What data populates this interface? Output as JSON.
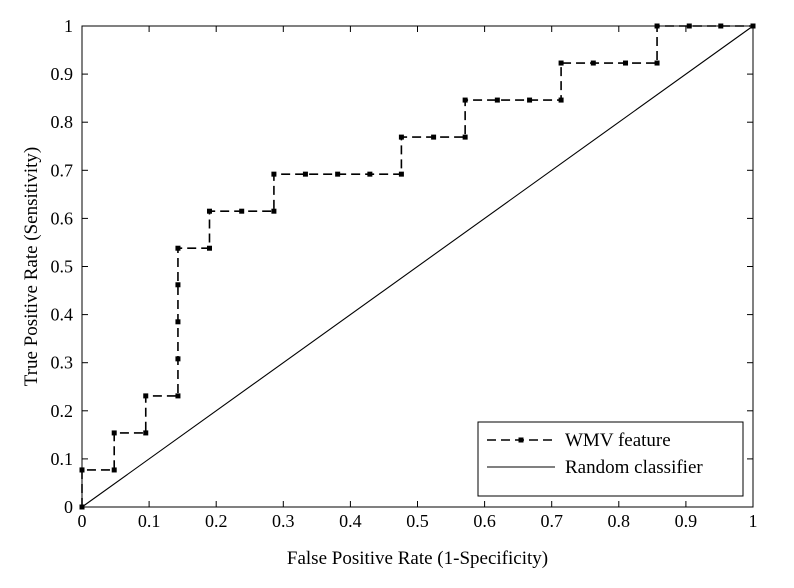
{
  "chart_data": {
    "type": "line",
    "title": "",
    "xlabel": "False Positive Rate (1-Specificity)",
    "ylabel": "True Positive Rate (Sensitivity)",
    "xlim": [
      0,
      1
    ],
    "ylim": [
      0,
      1
    ],
    "xticks": [
      "0",
      "0.1",
      "0.2",
      "0.3",
      "0.4",
      "0.5",
      "0.6",
      "0.7",
      "0.8",
      "0.9",
      "1"
    ],
    "yticks": [
      "0",
      "0.1",
      "0.2",
      "0.3",
      "0.4",
      "0.5",
      "0.6",
      "0.7",
      "0.8",
      "0.9",
      "1"
    ],
    "grid": false,
    "legend_position": "bottom-right",
    "series": [
      {
        "name": "WMV feature",
        "style": "dashed-with-square-markers",
        "color": "#000000",
        "x": [
          0,
          0,
          0,
          0.048,
          0.048,
          0.095,
          0.095,
          0.143,
          0.143,
          0.143,
          0.143,
          0.143,
          0.19,
          0.19,
          0.238,
          0.286,
          0.286,
          0.333,
          0.381,
          0.429,
          0.476,
          0.476,
          0.524,
          0.571,
          0.571,
          0.619,
          0.667,
          0.714,
          0.714,
          0.762,
          0.81,
          0.857,
          0.857,
          0.905,
          0.952,
          1.0
        ],
        "y": [
          0,
          0.077,
          0.077,
          0.077,
          0.154,
          0.154,
          0.231,
          0.231,
          0.308,
          0.385,
          0.462,
          0.538,
          0.538,
          0.615,
          0.615,
          0.615,
          0.692,
          0.692,
          0.692,
          0.692,
          0.692,
          0.769,
          0.769,
          0.769,
          0.846,
          0.846,
          0.846,
          0.846,
          0.923,
          0.923,
          0.923,
          0.923,
          1.0,
          1.0,
          1.0,
          1.0
        ]
      },
      {
        "name": "Random classifier",
        "style": "solid",
        "color": "#000000",
        "x": [
          0,
          1
        ],
        "y": [
          0,
          1
        ]
      }
    ]
  }
}
